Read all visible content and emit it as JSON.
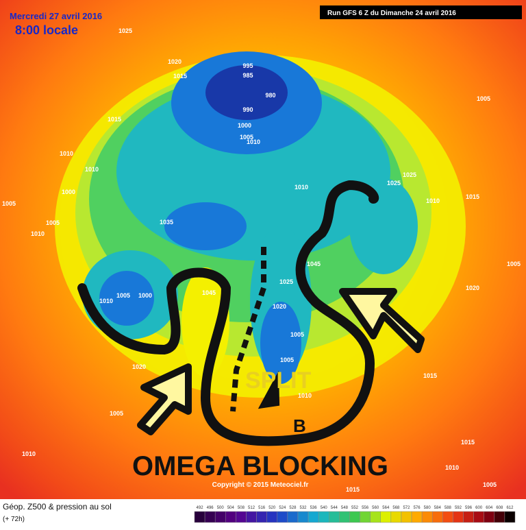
{
  "header": {
    "date": "Mercredi 27 avril 2016",
    "time": "8:00 locale",
    "run": "Run GFS 6 Z du Dimanche 24 avril 2016"
  },
  "annotations": {
    "split": "SPLIT",
    "b": "B",
    "omega": "OMEGA BLOCKING"
  },
  "copyright": "Copyright © 2015 Meteociel.fr",
  "footer": {
    "title": "Géop. Z500 & pression au sol",
    "lead": "(+ 72h)"
  },
  "legend": {
    "labels": [
      492,
      496,
      500,
      504,
      508,
      512,
      516,
      520,
      524,
      528,
      532,
      536,
      540,
      544,
      548,
      552,
      556,
      560,
      564,
      568,
      572,
      576,
      580,
      584,
      588,
      592,
      596,
      600,
      604,
      608,
      612
    ]
  },
  "isobars": [
    1025,
    1020,
    1015,
    995,
    985,
    980,
    990,
    1000,
    1005,
    1010,
    1015,
    1010,
    1010,
    1000,
    1005,
    1005,
    1010,
    1035,
    1010,
    1025,
    1025,
    1010,
    1015,
    1005,
    1045,
    1025,
    1045,
    1020,
    1005,
    1000,
    1010,
    1005,
    1005,
    1010,
    1020,
    1005,
    1010,
    1015,
    1015,
    1010,
    1005,
    1020,
    1015,
    1005
  ]
}
